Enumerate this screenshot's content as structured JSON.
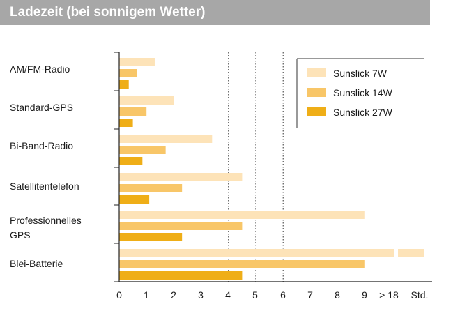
{
  "header": {
    "title": "Ladezeit (bei sonnigem Wetter)"
  },
  "colors": {
    "header_bg": "#a7a7a7",
    "sunslick_7w": "#fde3b8",
    "sunslick_14w": "#f8c668",
    "sunslick_27w": "#efae17"
  },
  "chart_data": {
    "type": "bar",
    "orientation": "horizontal",
    "title": "Ladezeit (bei sonnigem Wetter)",
    "categories": [
      [
        "AM/FM-Radio"
      ],
      [
        "Standard-GPS"
      ],
      [
        "Bi-Band-Radio"
      ],
      [
        "Satellitentelefon"
      ],
      [
        "Professionnelles",
        "GPS"
      ],
      [
        "Blei-Batterie"
      ]
    ],
    "series": [
      {
        "name": "Sunslick 7W",
        "color": "#fde3b8",
        "values": [
          1.3,
          2.0,
          3.4,
          4.5,
          9.0,
          18
        ]
      },
      {
        "name": "Sunslick 14W",
        "color": "#f8c668",
        "values": [
          0.65,
          1.0,
          1.7,
          2.3,
          4.5,
          9.0
        ]
      },
      {
        "name": "Sunslick 27W",
        "color": "#efae17",
        "values": [
          0.35,
          0.5,
          0.85,
          1.1,
          2.3,
          4.5
        ]
      }
    ],
    "x_ticks": [
      "0",
      "1",
      "2",
      "3",
      "4",
      "5",
      "6",
      "7",
      "8",
      "9",
      "> 18",
      "Std."
    ],
    "xlim": [
      0,
      9
    ],
    "axis_break": {
      "above": 9,
      "shown_as": "> 18"
    },
    "reference_lines": [
      4,
      5,
      6
    ],
    "legend_position": "top-right"
  }
}
